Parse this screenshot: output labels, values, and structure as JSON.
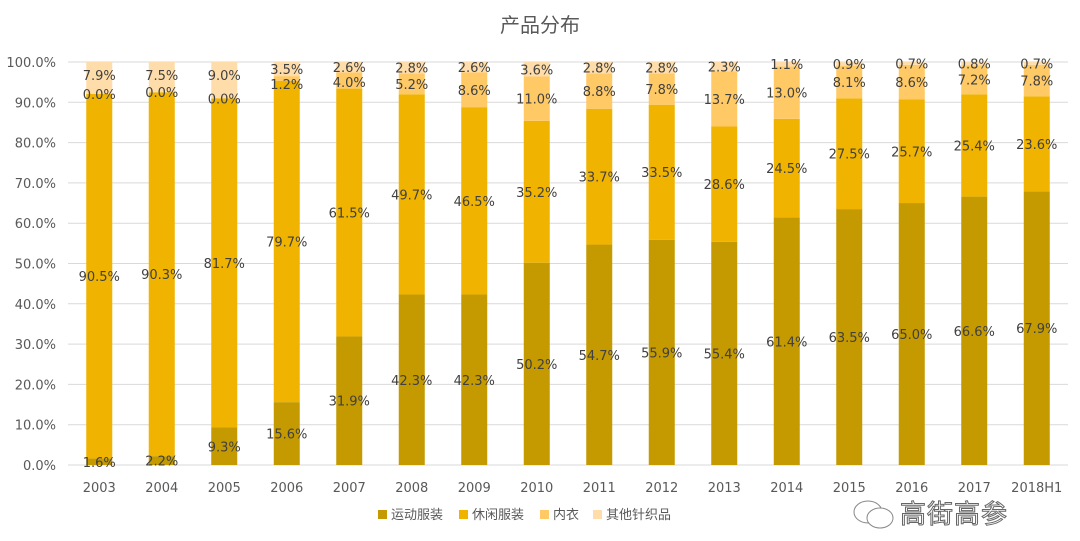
{
  "chart_data": {
    "type": "bar",
    "stacked": true,
    "title": "产品分布",
    "categories": [
      "2003",
      "2004",
      "2005",
      "2006",
      "2007",
      "2008",
      "2009",
      "2010",
      "2011",
      "2012",
      "2013",
      "2014",
      "2015",
      "2016",
      "2017",
      "2018H1"
    ],
    "series": [
      {
        "name": "运动服装",
        "color": "#C49A00",
        "values": [
          1.6,
          2.2,
          9.3,
          15.6,
          31.9,
          42.3,
          42.3,
          50.2,
          54.7,
          55.9,
          55.4,
          61.4,
          63.5,
          65.0,
          66.6,
          67.9
        ]
      },
      {
        "name": "休闲服装",
        "color": "#F0B400",
        "values": [
          90.5,
          90.3,
          81.7,
          79.7,
          61.5,
          49.7,
          46.5,
          35.2,
          33.7,
          33.5,
          28.6,
          24.5,
          27.5,
          25.7,
          25.4,
          23.6
        ]
      },
      {
        "name": "内衣",
        "color": "#FFC966",
        "values": [
          0.0,
          0.0,
          0.0,
          1.2,
          4.0,
          5.2,
          8.6,
          11.0,
          8.8,
          7.8,
          13.7,
          13.0,
          8.1,
          8.6,
          7.2,
          7.8
        ]
      },
      {
        "name": "其他针织品",
        "color": "#FFDDAA",
        "values": [
          7.9,
          7.5,
          9.0,
          3.5,
          2.6,
          2.8,
          2.6,
          3.6,
          2.8,
          2.8,
          2.3,
          1.1,
          0.9,
          0.7,
          0.8,
          0.7
        ]
      }
    ],
    "ylim": [
      0,
      100
    ],
    "yticks": [
      "0.0%",
      "10.0%",
      "20.0%",
      "30.0%",
      "40.0%",
      "50.0%",
      "60.0%",
      "70.0%",
      "80.0%",
      "90.0%",
      "100.0%"
    ],
    "grid": true,
    "legend": "bottom",
    "data_labels": true
  },
  "watermark": "高街高参"
}
